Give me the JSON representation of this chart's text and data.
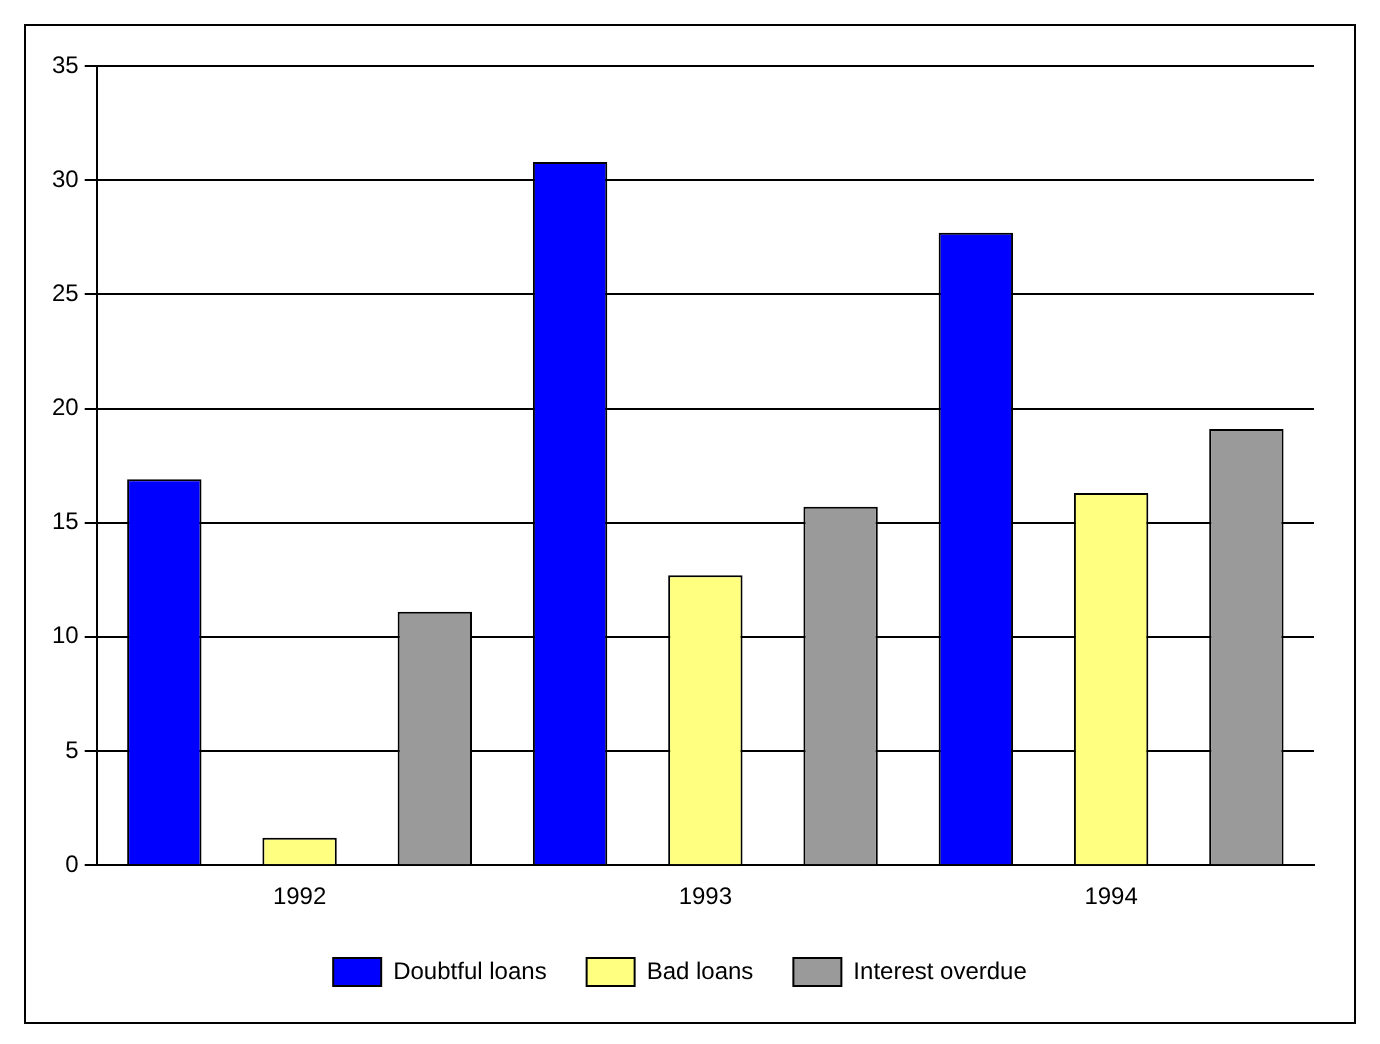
{
  "chart_data": {
    "type": "bar",
    "categories": [
      "1992",
      "1993",
      "1994"
    ],
    "series": [
      {
        "name": "Doubtful loans",
        "color": "#0000ff",
        "values": [
          16.9,
          30.8,
          27.7
        ]
      },
      {
        "name": "Bad loans",
        "color": "#ffff80",
        "values": [
          1.2,
          12.7,
          16.3
        ]
      },
      {
        "name": "Interest overdue",
        "color": "#9a9a9a",
        "values": [
          11.1,
          15.7,
          19.1
        ]
      }
    ],
    "ylim": [
      0,
      35
    ],
    "yticks": [
      0,
      5,
      10,
      15,
      20,
      25,
      30,
      35
    ],
    "grid": "y",
    "legend": "bottom"
  }
}
